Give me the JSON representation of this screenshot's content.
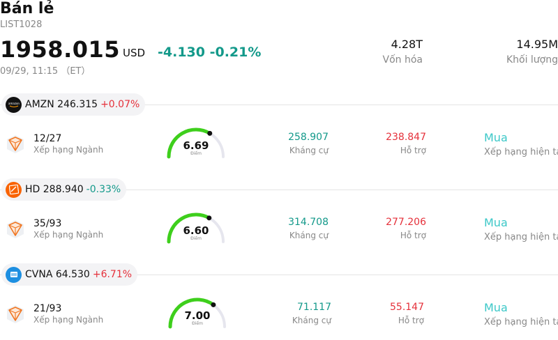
{
  "header": {
    "title": "Bán lẻ",
    "code": "LIST1028",
    "price": "1958.015",
    "currency": "USD",
    "change": "-4.130 -0.21%",
    "time": "09/29, 11:15 （ET）",
    "market_cap_value": "4.28T",
    "market_cap_label": "Vốn hóa",
    "volume_value": "14.95M",
    "volume_label": "Khối lượng"
  },
  "colors": {
    "up": "#e5303a",
    "down": "#13998a",
    "buy": "#3cc8c8",
    "gauge": "#3ecf1c"
  },
  "labels": {
    "rank": "Xếp hạng Ngành",
    "score": "Điểm",
    "resistance": "Kháng cự",
    "support": "Hỗ trợ",
    "rating": "Xếp hạng hiện tại"
  },
  "stocks": [
    {
      "ticker": "AMZN 246.315",
      "change": "+0.07%",
      "direction": "up",
      "logo_icon": "amazon-logo-icon",
      "rank": "12/27",
      "score": "6.69",
      "score_fraction": 0.669,
      "resistance": "258.907",
      "support": "238.847",
      "rating": "Mua"
    },
    {
      "ticker": "HD 288.940",
      "change": "-0.33%",
      "direction": "down",
      "logo_icon": "home-depot-logo-icon",
      "rank": "35/93",
      "score": "6.60",
      "score_fraction": 0.66,
      "resistance": "314.708",
      "support": "277.206",
      "rating": "Mua"
    },
    {
      "ticker": "CVNA 64.530",
      "change": "+6.71%",
      "direction": "up",
      "logo_icon": "carvana-logo-icon",
      "rank": "21/93",
      "score": "7.00",
      "score_fraction": 0.7,
      "resistance": "71.117",
      "support": "55.147",
      "rating": "Mua"
    }
  ]
}
